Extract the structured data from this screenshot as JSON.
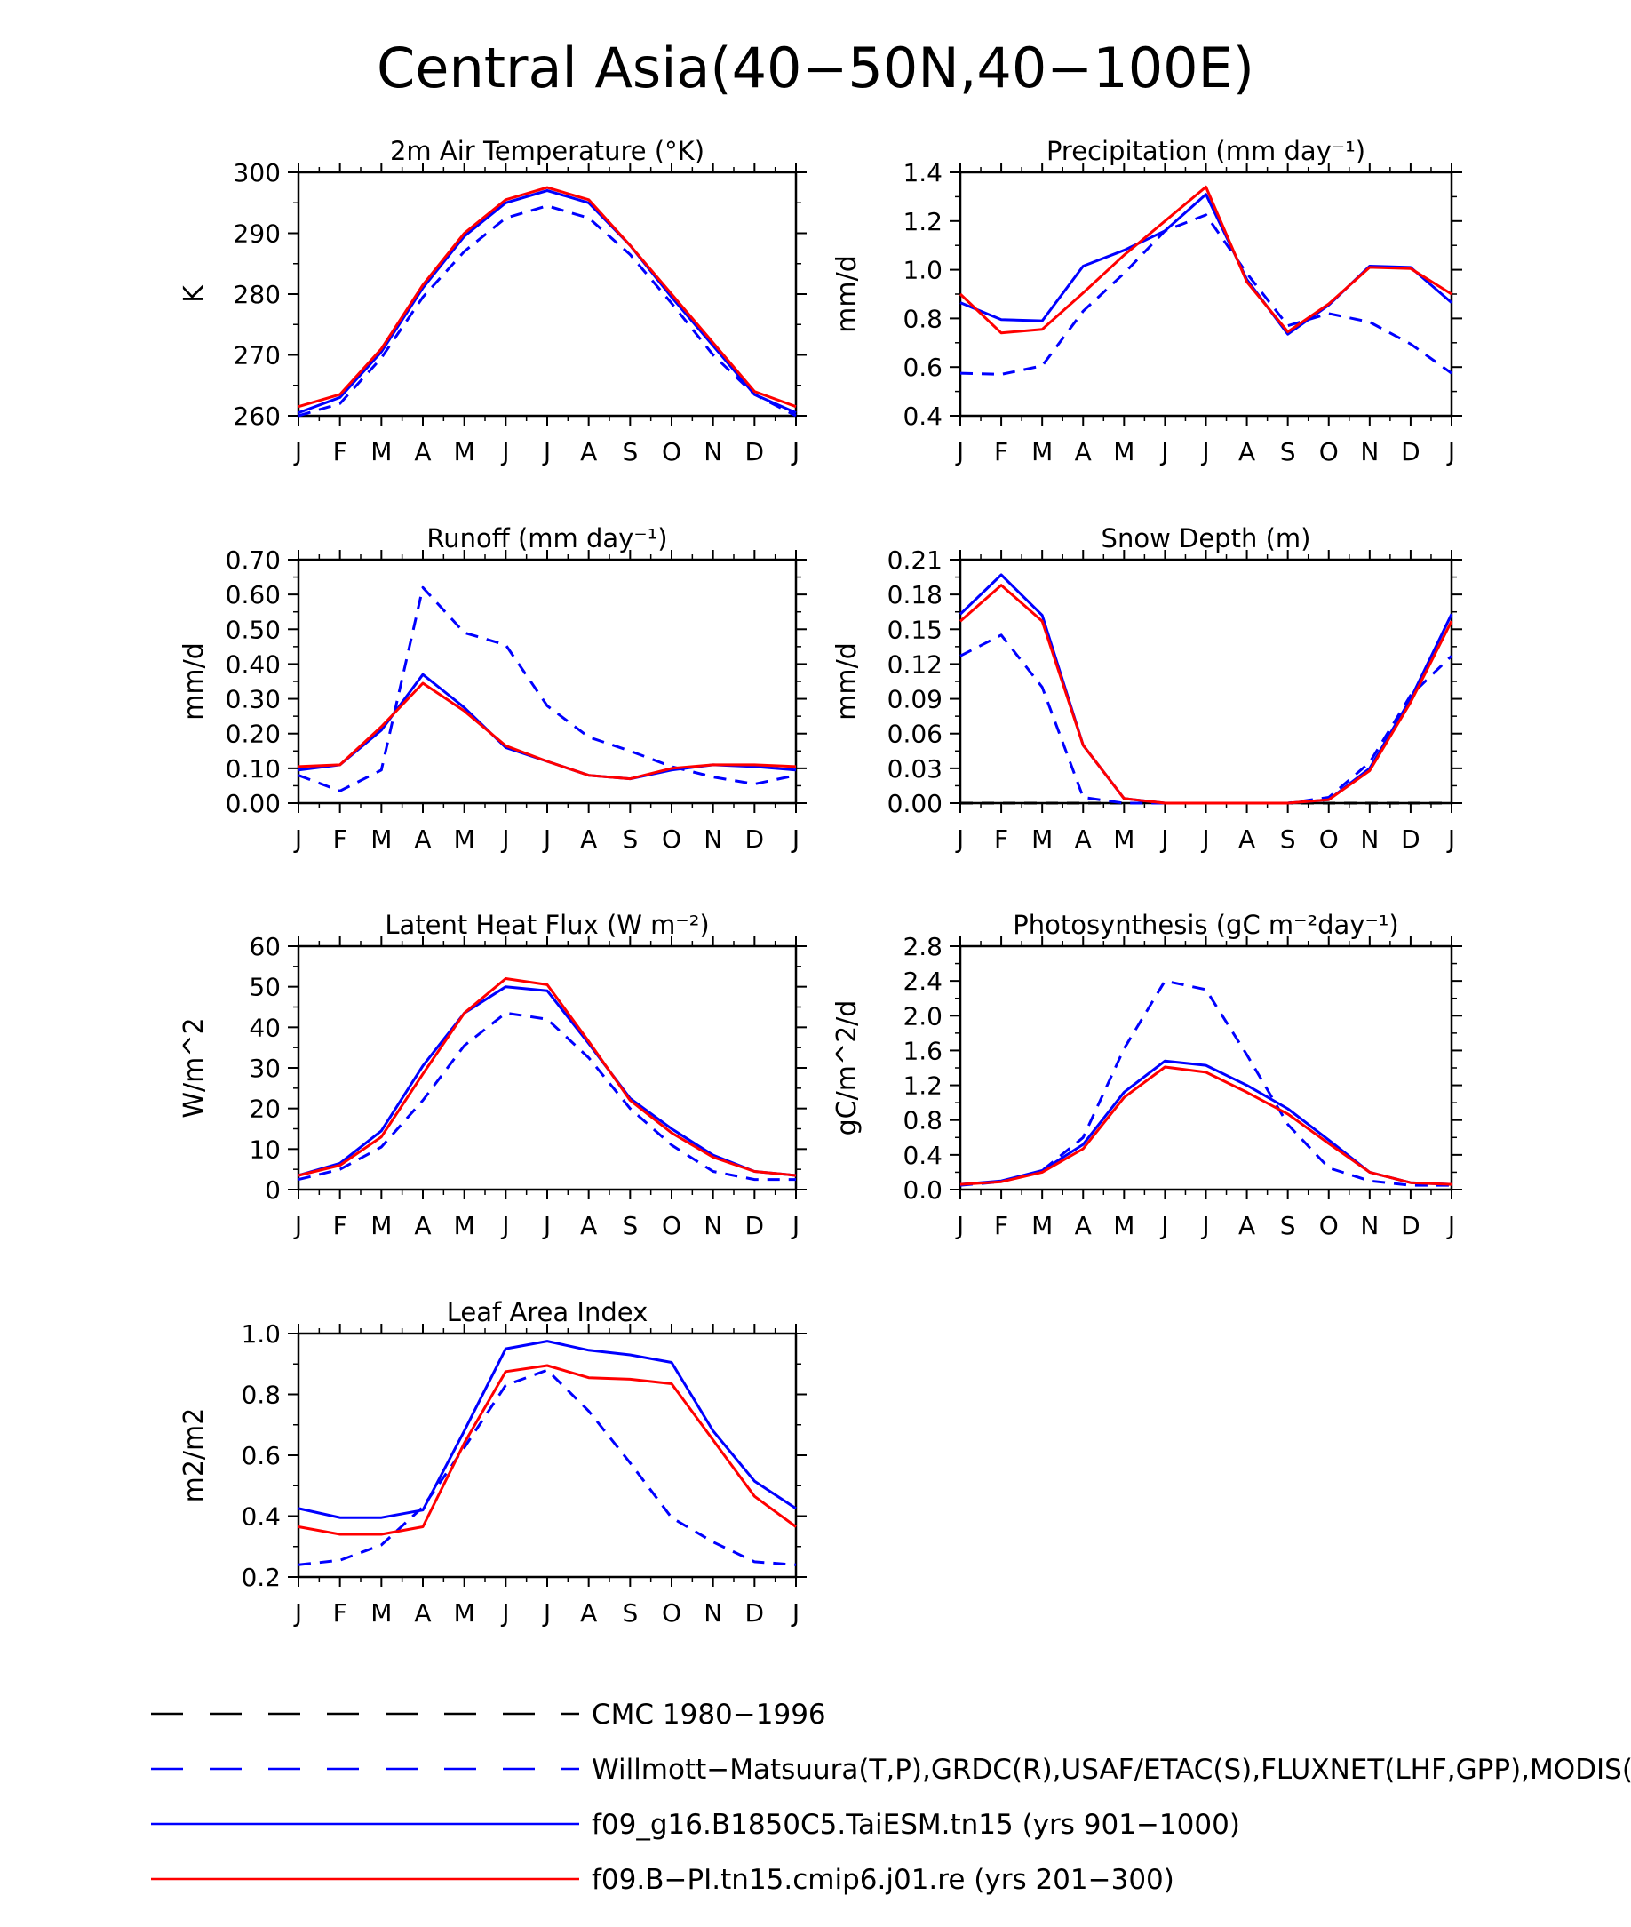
{
  "figure": {
    "title": "Central Asia(40−50N,40−100E)",
    "months": [
      "J",
      "F",
      "M",
      "A",
      "M",
      "J",
      "J",
      "A",
      "S",
      "O",
      "N",
      "D",
      "J"
    ]
  },
  "legend": [
    {
      "label": "CMC 1980−1996",
      "color": "#000000",
      "dash": true
    },
    {
      "label": "Willmott−Matsuura(T,P),GRDC(R),USAF/ETAC(S),FLUXNET(LHF,GPP),MODIS(L",
      "color": "#0000ff",
      "dash": true
    },
    {
      "label": "f09_g16.B1850C5.TaiESM.tn15 (yrs 901−1000)",
      "color": "#0000ff",
      "dash": false
    },
    {
      "label": "f09.B−PI.tn15.cmip6.j01.re (yrs 201−300)",
      "color": "#ff0000",
      "dash": false
    }
  ],
  "chart_data": [
    {
      "type": "line",
      "title": "2m Air Temperature (°K)",
      "ylabel": "K",
      "ylim": [
        260,
        300
      ],
      "yticks": [
        "260",
        "270",
        "280",
        "290",
        "300"
      ],
      "x": [
        "J",
        "F",
        "M",
        "A",
        "M",
        "J",
        "J",
        "A",
        "S",
        "O",
        "N",
        "D",
        "J"
      ],
      "series": [
        {
          "name": "Willmott−Matsuura(T,P),GRDC(R),USAF/ETAC(S),FLUXNET(LHF,GPP),MODIS(L",
          "color": "#0000ff",
          "dash": true,
          "values": [
            260.0,
            262.0,
            269.5,
            279.5,
            287.0,
            292.5,
            294.5,
            292.5,
            286.5,
            278.5,
            270.0,
            263.5,
            260.0
          ]
        },
        {
          "name": "f09_g16.B1850C5.TaiESM.tn15 (yrs 901−1000)",
          "color": "#0000ff",
          "dash": false,
          "values": [
            260.5,
            263.0,
            270.5,
            281.0,
            289.5,
            295.0,
            297.0,
            295.0,
            288.0,
            279.5,
            271.5,
            263.5,
            260.5
          ]
        },
        {
          "name": "f09.B−PI.tn15.cmip6.j01.re (yrs 201−300)",
          "color": "#ff0000",
          "dash": false,
          "values": [
            261.5,
            263.5,
            271.0,
            281.5,
            290.0,
            295.5,
            297.5,
            295.5,
            288.0,
            280.0,
            272.0,
            264.0,
            261.5
          ]
        }
      ]
    },
    {
      "type": "line",
      "title": "Precipitation (mm day⁻¹)",
      "ylabel": "mm/d",
      "ylim": [
        0.4,
        1.4
      ],
      "yticks": [
        "0.4",
        "0.6",
        "0.8",
        "1.0",
        "1.2",
        "1.4"
      ],
      "x": [
        "J",
        "F",
        "M",
        "A",
        "M",
        "J",
        "J",
        "A",
        "S",
        "O",
        "N",
        "D",
        "J"
      ],
      "series": [
        {
          "name": "Willmott−Matsuura(T,P),GRDC(R),USAF/ETAC(S),FLUXNET(LHF,GPP),MODIS(L",
          "color": "#0000ff",
          "dash": true,
          "values": [
            0.575,
            0.57,
            0.605,
            0.83,
            0.985,
            1.16,
            1.225,
            0.985,
            0.77,
            0.82,
            0.785,
            0.695,
            0.575
          ]
        },
        {
          "name": "f09_g16.B1850C5.TaiESM.tn15 (yrs 901−1000)",
          "color": "#0000ff",
          "dash": false,
          "values": [
            0.865,
            0.795,
            0.79,
            1.015,
            1.08,
            1.16,
            1.31,
            0.96,
            0.735,
            0.855,
            1.015,
            1.01,
            0.865
          ]
        },
        {
          "name": "f09.B−PI.tn15.cmip6.j01.re (yrs 201−300)",
          "color": "#ff0000",
          "dash": false,
          "values": [
            0.9,
            0.74,
            0.755,
            0.905,
            1.06,
            1.2,
            1.34,
            0.95,
            0.745,
            0.86,
            1.01,
            1.005,
            0.9
          ]
        }
      ]
    },
    {
      "type": "line",
      "title": "Runoff (mm day⁻¹)",
      "ylabel": "mm/d",
      "ylim": [
        0.0,
        0.7
      ],
      "yticks": [
        "0.00",
        "0.10",
        "0.20",
        "0.30",
        "0.40",
        "0.50",
        "0.60",
        "0.70"
      ],
      "x": [
        "J",
        "F",
        "M",
        "A",
        "M",
        "J",
        "J",
        "A",
        "S",
        "O",
        "N",
        "D",
        "J"
      ],
      "series": [
        {
          "name": "Willmott−Matsuura(T,P),GRDC(R),USAF/ETAC(S),FLUXNET(LHF,GPP),MODIS(L",
          "color": "#0000ff",
          "dash": true,
          "values": [
            0.08,
            0.035,
            0.095,
            0.62,
            0.49,
            0.455,
            0.28,
            0.19,
            0.15,
            0.105,
            0.075,
            0.055,
            0.08
          ]
        },
        {
          "name": "f09_g16.B1850C5.TaiESM.tn15 (yrs 901−1000)",
          "color": "#0000ff",
          "dash": false,
          "values": [
            0.095,
            0.11,
            0.21,
            0.37,
            0.275,
            0.16,
            0.12,
            0.08,
            0.07,
            0.095,
            0.11,
            0.105,
            0.095
          ]
        },
        {
          "name": "f09.B−PI.tn15.cmip6.j01.re (yrs 201−300)",
          "color": "#ff0000",
          "dash": false,
          "values": [
            0.105,
            0.11,
            0.22,
            0.345,
            0.265,
            0.165,
            0.12,
            0.08,
            0.07,
            0.1,
            0.11,
            0.11,
            0.105
          ]
        }
      ]
    },
    {
      "type": "line",
      "title": "Snow Depth (m)",
      "ylabel": "mm/d",
      "ylim": [
        0.0,
        0.21
      ],
      "yticks": [
        "0.00",
        "0.03",
        "0.06",
        "0.09",
        "0.12",
        "0.15",
        "0.18",
        "0.21"
      ],
      "x": [
        "J",
        "F",
        "M",
        "A",
        "M",
        "J",
        "J",
        "A",
        "S",
        "O",
        "N",
        "D",
        "J"
      ],
      "series": [
        {
          "name": "CMC 1980−1996",
          "color": "#000000",
          "dash": true,
          "values": [
            0.0,
            0.0,
            0.0,
            0.0,
            0.0,
            0.0,
            0.0,
            0.0,
            0.0,
            0.0,
            0.0,
            0.0,
            0.0
          ]
        },
        {
          "name": "Willmott−Matsuura(T,P),GRDC(R),USAF/ETAC(S),FLUXNET(LHF,GPP),MODIS(L",
          "color": "#0000ff",
          "dash": true,
          "values": [
            0.127,
            0.145,
            0.1,
            0.005,
            0.0,
            0.0,
            0.0,
            0.0,
            0.0,
            0.005,
            0.035,
            0.093,
            0.127
          ]
        },
        {
          "name": "f09_g16.B1850C5.TaiESM.tn15 (yrs 901−1000)",
          "color": "#0000ff",
          "dash": false,
          "values": [
            0.163,
            0.197,
            0.162,
            0.05,
            0.004,
            0.0,
            0.0,
            0.0,
            0.0,
            0.003,
            0.03,
            0.09,
            0.163
          ]
        },
        {
          "name": "f09.B−PI.tn15.cmip6.j01.re (yrs 201−300)",
          "color": "#ff0000",
          "dash": false,
          "values": [
            0.157,
            0.188,
            0.157,
            0.05,
            0.004,
            0.0,
            0.0,
            0.0,
            0.0,
            0.003,
            0.028,
            0.087,
            0.157
          ]
        }
      ]
    },
    {
      "type": "line",
      "title": "Latent Heat Flux (W m⁻²)",
      "ylabel": "W/m^2",
      "ylim": [
        0,
        60
      ],
      "yticks": [
        "0",
        "10",
        "20",
        "30",
        "40",
        "50",
        "60"
      ],
      "x": [
        "J",
        "F",
        "M",
        "A",
        "M",
        "J",
        "J",
        "A",
        "S",
        "O",
        "N",
        "D",
        "J"
      ],
      "series": [
        {
          "name": "Willmott−Matsuura(T,P),GRDC(R),USAF/ETAC(S),FLUXNET(LHF,GPP),MODIS(L",
          "color": "#0000ff",
          "dash": true,
          "values": [
            2.5,
            5.0,
            10.5,
            22.0,
            35.5,
            43.5,
            42.0,
            32.5,
            20.0,
            11.0,
            4.5,
            2.5,
            2.5
          ]
        },
        {
          "name": "f09_g16.B1850C5.TaiESM.tn15 (yrs 901−1000)",
          "color": "#0000ff",
          "dash": false,
          "values": [
            3.5,
            6.5,
            14.5,
            30.5,
            43.5,
            50.0,
            49.0,
            36.0,
            22.5,
            15.0,
            8.5,
            4.5,
            3.5
          ]
        },
        {
          "name": "f09.B−PI.tn15.cmip6.j01.re (yrs 201−300)",
          "color": "#ff0000",
          "dash": false,
          "values": [
            3.5,
            6.0,
            13.0,
            28.5,
            43.5,
            52.0,
            50.5,
            36.5,
            22.0,
            14.0,
            8.0,
            4.5,
            3.5
          ]
        }
      ]
    },
    {
      "type": "line",
      "title": "Photosynthesis (gC m⁻²day⁻¹)",
      "ylabel": "gC/m^2/d",
      "ylim": [
        0.0,
        2.8
      ],
      "yticks": [
        "0.0",
        "0.4",
        "0.8",
        "1.2",
        "1.6",
        "2.0",
        "2.4",
        "2.8"
      ],
      "x": [
        "J",
        "F",
        "M",
        "A",
        "M",
        "J",
        "J",
        "A",
        "S",
        "O",
        "N",
        "D",
        "J"
      ],
      "series": [
        {
          "name": "Willmott−Matsuura(T,P),GRDC(R),USAF/ETAC(S),FLUXNET(LHF,GPP),MODIS(L",
          "color": "#0000ff",
          "dash": true,
          "values": [
            0.05,
            0.09,
            0.22,
            0.6,
            1.62,
            2.4,
            2.3,
            1.55,
            0.75,
            0.25,
            0.1,
            0.05,
            0.05
          ]
        },
        {
          "name": "f09_g16.B1850C5.TaiESM.tn15 (yrs 901−1000)",
          "color": "#0000ff",
          "dash": false,
          "values": [
            0.06,
            0.1,
            0.22,
            0.52,
            1.12,
            1.48,
            1.43,
            1.2,
            0.93,
            0.57,
            0.2,
            0.08,
            0.06
          ]
        },
        {
          "name": "f09.B−PI.tn15.cmip6.j01.re (yrs 201−300)",
          "color": "#ff0000",
          "dash": false,
          "values": [
            0.06,
            0.09,
            0.2,
            0.47,
            1.06,
            1.41,
            1.35,
            1.12,
            0.87,
            0.53,
            0.2,
            0.08,
            0.06
          ]
        }
      ]
    },
    {
      "type": "line",
      "title": "Leaf Area Index",
      "ylabel": "m2/m2",
      "ylim": [
        0.2,
        1.0
      ],
      "yticks": [
        "0.2",
        "0.4",
        "0.6",
        "0.8",
        "1.0"
      ],
      "x": [
        "J",
        "F",
        "M",
        "A",
        "M",
        "J",
        "J",
        "A",
        "S",
        "O",
        "N",
        "D",
        "J"
      ],
      "series": [
        {
          "name": "Willmott−Matsuura(T,P),GRDC(R),USAF/ETAC(S),FLUXNET(LHF,GPP),MODIS(L",
          "color": "#0000ff",
          "dash": true,
          "values": [
            0.24,
            0.255,
            0.305,
            0.43,
            0.625,
            0.83,
            0.88,
            0.745,
            0.575,
            0.395,
            0.315,
            0.25,
            0.24
          ]
        },
        {
          "name": "f09_g16.B1850C5.TaiESM.tn15 (yrs 901−1000)",
          "color": "#0000ff",
          "dash": false,
          "values": [
            0.425,
            0.395,
            0.395,
            0.42,
            0.68,
            0.95,
            0.975,
            0.945,
            0.93,
            0.905,
            0.68,
            0.515,
            0.425
          ]
        },
        {
          "name": "f09.B−PI.tn15.cmip6.j01.re (yrs 201−300)",
          "color": "#ff0000",
          "dash": false,
          "values": [
            0.365,
            0.34,
            0.34,
            0.365,
            0.64,
            0.875,
            0.895,
            0.855,
            0.85,
            0.835,
            0.65,
            0.465,
            0.365
          ]
        }
      ]
    }
  ]
}
